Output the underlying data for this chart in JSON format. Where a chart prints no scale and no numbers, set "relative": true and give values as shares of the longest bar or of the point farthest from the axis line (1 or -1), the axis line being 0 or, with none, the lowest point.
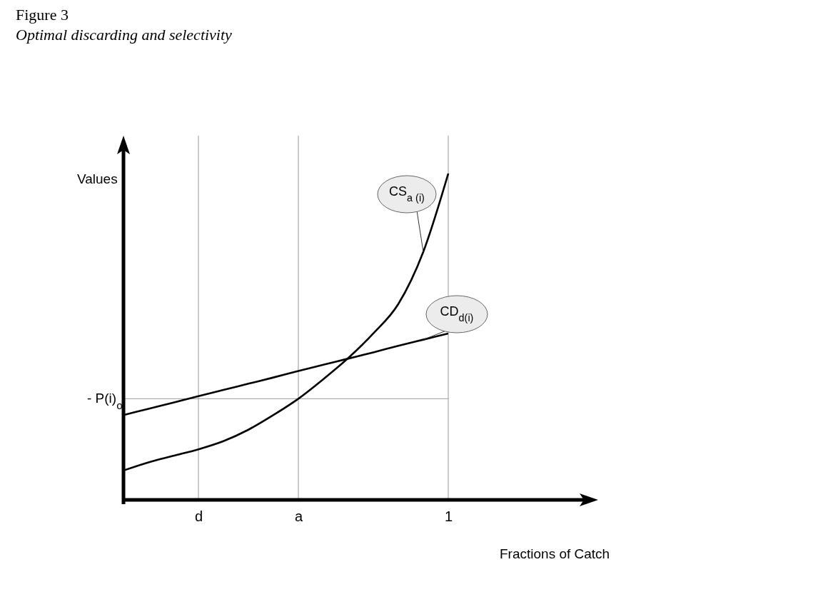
{
  "chart_data": {
    "type": "line",
    "title": "Figure 3",
    "subtitle": "Optimal discarding and selectivity",
    "xlabel": "Fractions of Catch",
    "ylabel": "Values",
    "relative": true,
    "legend": false,
    "marker": "none",
    "line_style": "solid",
    "categories": [
      null,
      null,
      null,
      "d",
      null,
      null,
      null,
      "a",
      null,
      null,
      null,
      null,
      null,
      "1",
      null,
      null,
      null,
      null,
      null,
      null
    ],
    "series": [
      {
        "name": "CS$_{a (i)}$",
        "color": "#000000",
        "values": [
          0.09,
          0.115,
          0.135,
          0.155,
          0.18,
          0.215,
          0.26,
          0.31,
          0.37,
          0.435,
          0.51,
          0.6,
          0.76,
          1,
          null,
          null,
          null,
          null,
          null,
          null
        ]
      },
      {
        "name": "CD$_{d(i)}$",
        "color": "#000000",
        "values": [
          0.26,
          0.279,
          0.298,
          0.318,
          0.337,
          0.356,
          0.375,
          0.395,
          0.414,
          0.433,
          0.452,
          0.472,
          0.491,
          0.51,
          null,
          null,
          null,
          null,
          null,
          null
        ]
      }
    ],
    "ref_lines": [
      {
        "axis": "y",
        "value": 0.31,
        "label": "- P(i)$_{o}$",
        "color": "#999999"
      },
      {
        "axis": "x",
        "value": "d",
        "color": "#999999"
      },
      {
        "axis": "x",
        "value": "a",
        "color": "#999999"
      },
      {
        "axis": "x",
        "value": "1",
        "color": "#999999"
      }
    ]
  }
}
